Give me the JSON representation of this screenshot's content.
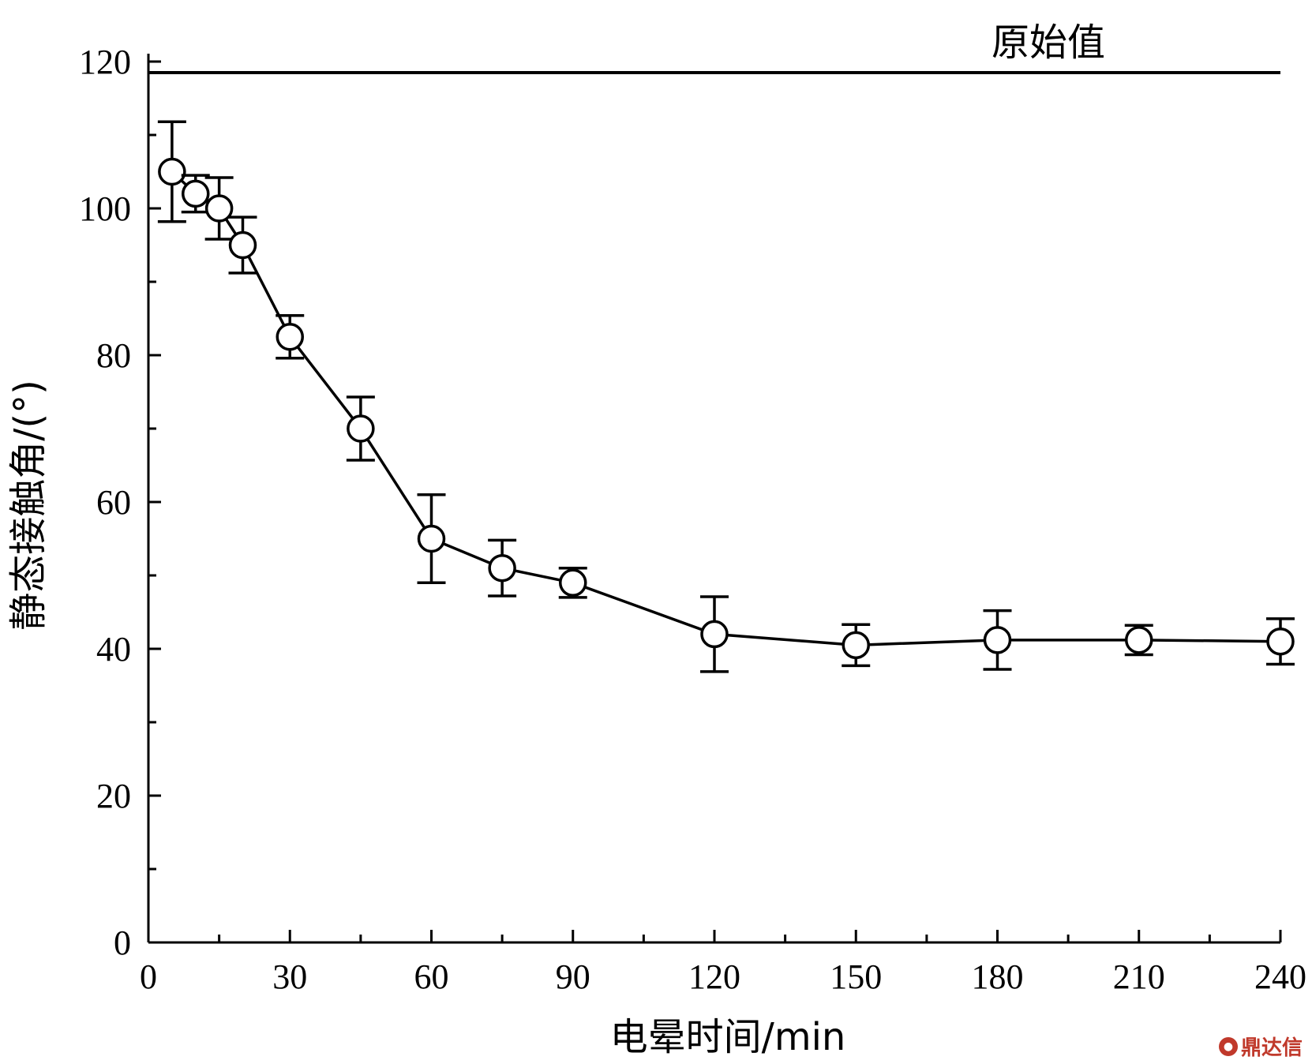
{
  "chart_data": {
    "type": "line",
    "title": "",
    "xlabel": "电晕时间/min",
    "ylabel": "静态接触角/(°)",
    "xlim": [
      0,
      240
    ],
    "ylim": [
      0,
      120
    ],
    "x_ticks": [
      0,
      30,
      60,
      90,
      120,
      150,
      180,
      210,
      240
    ],
    "y_ticks": [
      0,
      20,
      40,
      60,
      80,
      100,
      120
    ],
    "x_minor_step": 15,
    "y_minor_step": 10,
    "grid": false,
    "reference_line": {
      "y": 118.5,
      "label": "原始值"
    },
    "series": [
      {
        "name": "静态接触角",
        "marker": "open-circle",
        "x": [
          5,
          10,
          15,
          20,
          30,
          45,
          60,
          75,
          90,
          120,
          150,
          180,
          210,
          240
        ],
        "y": [
          105,
          102,
          100,
          95,
          82.5,
          70,
          55,
          51,
          49,
          42,
          40.5,
          41.2,
          41.2,
          41
        ],
        "error": [
          6.8,
          2.5,
          4.2,
          3.8,
          2.9,
          4.3,
          6,
          3.8,
          2,
          5.1,
          2.8,
          4,
          2,
          3.1
        ]
      }
    ]
  },
  "watermark": {
    "text": "鼎达信",
    "icon": "logo-icon"
  }
}
